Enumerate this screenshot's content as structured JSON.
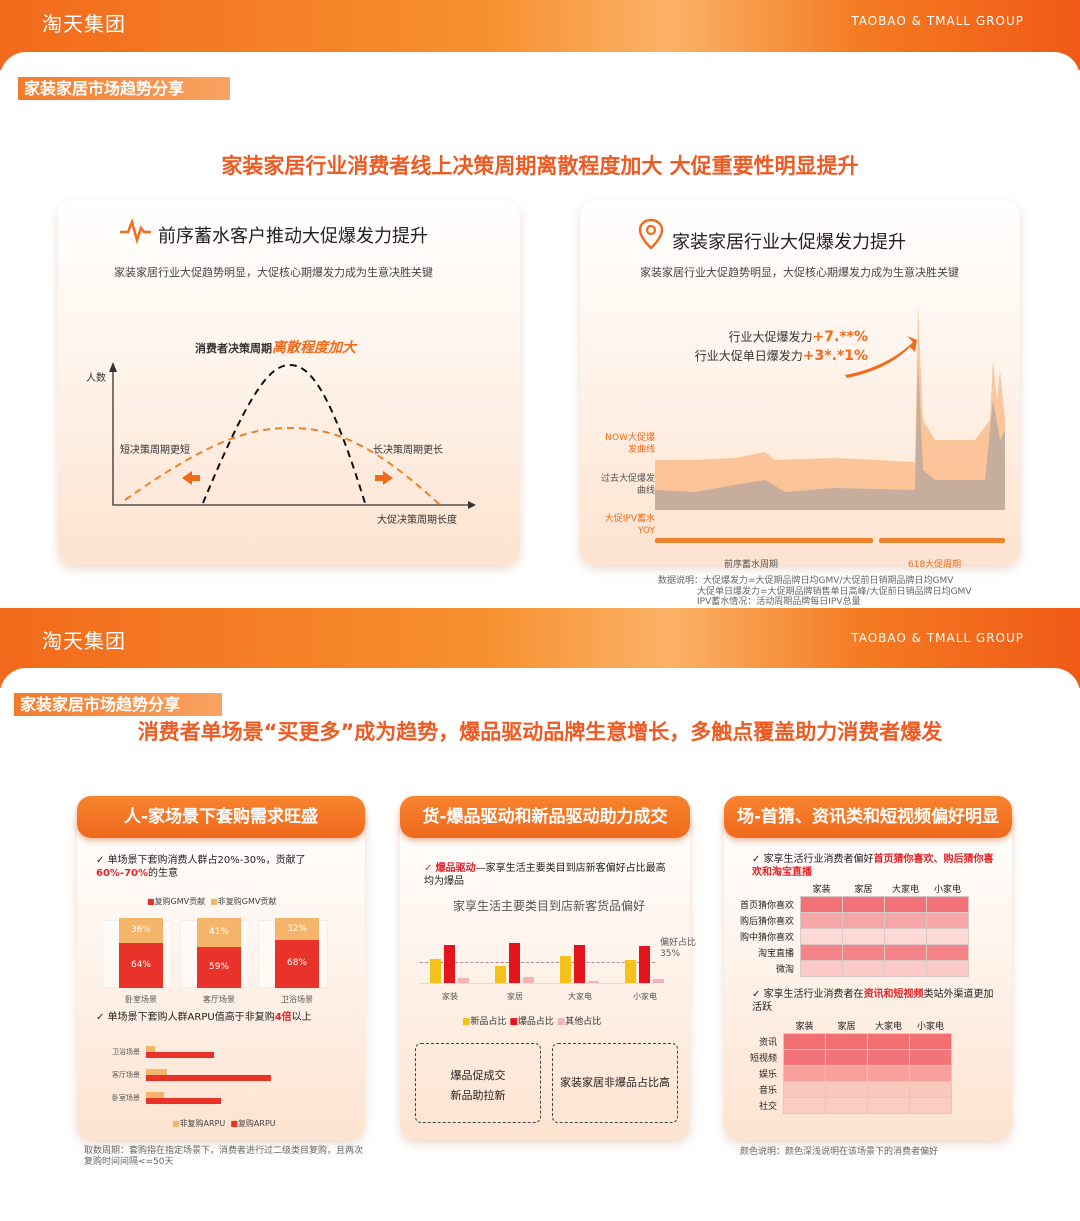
{
  "brand": {
    "logo": "淘天集团",
    "group": "TAOBAO & TMALL GROUP",
    "accent": "#f26a1b",
    "highlight": "#e0262b"
  },
  "slide1": {
    "tag": "家装家居市场趋势分享",
    "title": "家装家居行业消费者线上决策周期离散程度加大  大促重要性明显提升",
    "left": {
      "icon": "pulse-icon",
      "title": "前序蓄水客户推动大促爆发力提升",
      "subtitle": "家装家居行业大促趋势明显，大促核心期爆发力成为生意决胜关键",
      "chart_label_prefix": "消费者决策周期",
      "chart_label_highlight": "离散程度加大",
      "ylabel": "人数",
      "xlabel": "大促决策周期长度",
      "left_note": "短决策周期更短",
      "right_note": "长决策周期更长"
    },
    "right": {
      "icon": "location-pin-icon",
      "title": "家装家居行业大促爆发力提升",
      "subtitle": "家装家居行业大促趋势明显，大促核心期爆发力成为生意决胜关键",
      "stat1_label": "行业大促爆发力",
      "stat1_value": "+7.**%",
      "stat2_label": "行业大促单日爆发力",
      "stat2_value": "+3*.*1%",
      "series_now": "NOW大促爆发曲线",
      "series_past": "过去大促爆发曲线",
      "series_ipv": "大促IPV蓄水YOY",
      "period1": "前序蓄水周期",
      "period2": "618大促周期"
    },
    "notes": [
      "数据说明：大促爆发力=大促期品牌日均GMV/大促前日销期品牌日均GMV",
      "大促单日爆发力=大促期品牌销售单日高峰/大促前日销品牌日均GMV",
      "IPV蓄水情况：活动周期品牌每日IPV总量"
    ]
  },
  "slide2": {
    "tag": "家装家居市场趋势分享",
    "title": "消费者单场景“买更多”成为趋势，爆品驱动品牌生意增长，多触点覆盖助力消费者爆发",
    "card1": {
      "header": "人-家场景下套购需求旺盛",
      "point1": "单场景下套购消费人群占20%-30%，贡献了",
      "point1_hl": "60%-70%",
      "point1_end": "的生意",
      "point2": "单场景下套购人群ARPU值高于非复购",
      "point2_hl": "4倍",
      "point2_end": "以上",
      "footnote": "取数周期：套购指在指定场景下，消费者进行过二级类目复购，且两次复购时间间隔<=50天"
    },
    "card2": {
      "header": "货-爆品驱动和新品驱动助力成交",
      "point_hl": "爆品驱动",
      "point": "—家享生活主要类目到店新客偏好占比最高均为爆品",
      "box1_line1": "爆品促成交",
      "box1_line2": "新品助拉新",
      "box2": "家装家居非爆品占比高"
    },
    "card3": {
      "header": "场-首猜、资讯类和短视频偏好明显",
      "point1": "家享生活行业消费者偏好",
      "point1_hl": "首页猜你喜欢、购后猜你喜欢和淘宝直播",
      "point2": "家享生活行业消费者在",
      "point2_hl": "资讯和短视频",
      "point2_end": "类站外渠道更加活跃",
      "footnote": "颜色说明：颜色深浅说明在该场景下的消费者偏好"
    }
  },
  "chart_data": [
    {
      "type": "bar",
      "stacked": true,
      "legend": [
        "复购GMV贡献",
        "非复购GMV贡献"
      ],
      "categories": [
        "卧室场景",
        "客厅场景",
        "卫浴场景"
      ],
      "series": [
        {
          "name": "复购GMV贡献",
          "values": [
            64,
            59,
            68
          ],
          "labels": [
            "64%",
            "59%",
            "68%"
          ],
          "color": "#e8322a"
        },
        {
          "name": "非复购GMV贡献",
          "values": [
            36,
            41,
            32
          ],
          "labels": [
            "36%",
            "41%",
            "32%"
          ],
          "color": "#f4b46a"
        }
      ]
    },
    {
      "type": "bar",
      "orientation": "horizontal",
      "legend": [
        "非复购ARPU",
        "复购ARPU"
      ],
      "categories": [
        "卫浴场景",
        "客厅场景",
        "卧室场景"
      ],
      "series": [
        {
          "name": "非复购ARPU",
          "values": [
            9,
            21,
            18
          ],
          "color": "#f4b46a"
        },
        {
          "name": "复购ARPU",
          "values": [
            68,
            125,
            75
          ],
          "color": "#e8322a"
        }
      ]
    },
    {
      "type": "bar",
      "title": "家享生活主要类目到店新客货品偏好",
      "categories": [
        "家装",
        "家居",
        "大家电",
        "小家电"
      ],
      "reference_line": {
        "value": 35,
        "label1": "偏好占比",
        "label2": "35%"
      },
      "series": [
        {
          "name": "新品占比",
          "values": [
            40,
            28,
            45,
            39
          ],
          "color": "#f6c21a"
        },
        {
          "name": "爆品占比",
          "values": [
            63,
            66,
            64,
            62
          ],
          "color": "#e3141b"
        },
        {
          "name": "其他占比",
          "values": [
            8,
            10,
            4,
            7
          ],
          "color": "#f5b3b8"
        }
      ]
    },
    {
      "type": "heatmap",
      "columns": [
        "家装",
        "家居",
        "大家电",
        "小家电"
      ],
      "rows": [
        "首页猜你喜欢",
        "购后猜你喜欢",
        "购中猜你喜欢",
        "淘宝直播",
        "微淘"
      ],
      "intensity": [
        0.9,
        0.5,
        0.1,
        0.75,
        0.2
      ]
    },
    {
      "type": "heatmap",
      "columns": [
        "家装",
        "家居",
        "大家电",
        "小家电"
      ],
      "rows": [
        "资讯",
        "短视频",
        "娱乐",
        "音乐",
        "社交"
      ],
      "intensity": [
        0.9,
        0.85,
        0.5,
        0.15,
        0.1
      ]
    }
  ]
}
